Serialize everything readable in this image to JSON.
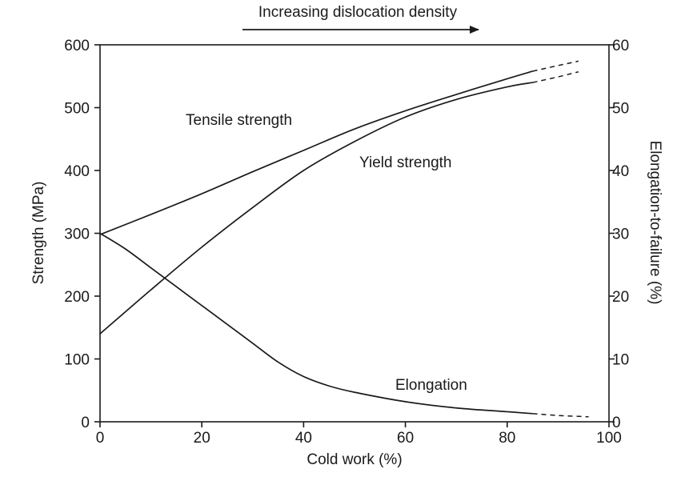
{
  "chart_data": {
    "type": "line",
    "header": {
      "text": "Increasing dislocation density",
      "arrow": "right"
    },
    "xlabel": "Cold work (%)",
    "ylabel": "Strength (MPa)",
    "y2label": "Elongation-to-failure (%)",
    "xlim": [
      0,
      100
    ],
    "ylim": [
      0,
      600
    ],
    "y2lim": [
      0,
      60
    ],
    "xticks": [
      0,
      20,
      40,
      60,
      80,
      100
    ],
    "yticks": [
      0,
      100,
      200,
      300,
      400,
      500,
      600
    ],
    "y2ticks": [
      0,
      10,
      20,
      30,
      40,
      50,
      60
    ],
    "grid": false,
    "legend": "none",
    "series": [
      {
        "name": "Tensile strength",
        "axis": "left",
        "x": [
          0,
          10,
          20,
          30,
          40,
          50,
          60,
          70,
          80,
          85
        ],
        "y": [
          298,
          330,
          363,
          398,
          432,
          466,
          495,
          521,
          546,
          558
        ],
        "extrapolated": {
          "x": [
            85,
            90,
            94
          ],
          "y": [
            558,
            567,
            574
          ]
        }
      },
      {
        "name": "Yield strength",
        "axis": "left",
        "x": [
          0,
          10,
          20,
          30,
          40,
          50,
          60,
          70,
          80,
          85
        ],
        "y": [
          140,
          210,
          278,
          341,
          400,
          446,
          485,
          513,
          533,
          540
        ],
        "extrapolated": {
          "x": [
            85,
            90,
            94
          ],
          "y": [
            540,
            549,
            557
          ]
        }
      },
      {
        "name": "Elongation",
        "axis": "right",
        "x": [
          0,
          5,
          10,
          15,
          20,
          25,
          30,
          35,
          40,
          45,
          50,
          60,
          70,
          80,
          85
        ],
        "y": [
          30,
          27.5,
          24.5,
          21.5,
          18.5,
          15.5,
          12.5,
          9.5,
          7.2,
          5.7,
          4.7,
          3.2,
          2.2,
          1.6,
          1.3
        ],
        "extrapolated": {
          "x": [
            85,
            90,
            96
          ],
          "y": [
            1.3,
            1.0,
            0.8
          ]
        }
      }
    ]
  }
}
